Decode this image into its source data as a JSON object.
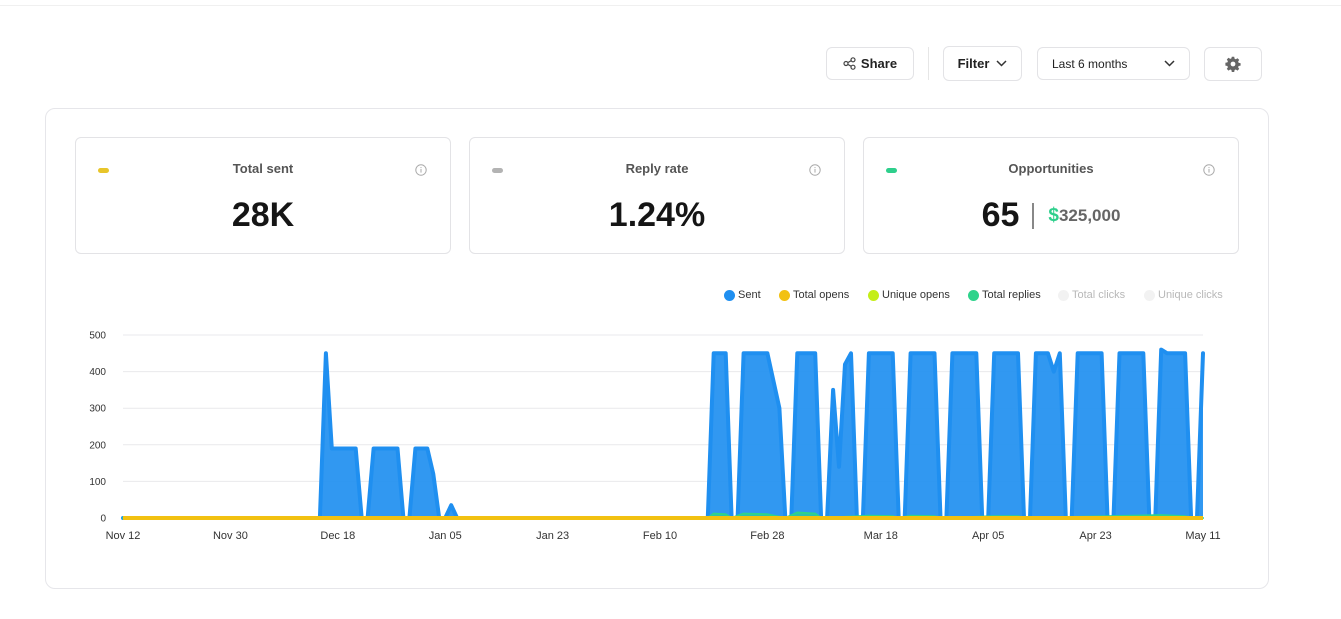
{
  "toolbar": {
    "share_label": "Share",
    "filter_label": "Filter",
    "range_label": "Last 6 months",
    "share_icon": "share-icon",
    "settings_icon": "gear-icon"
  },
  "cards": {
    "total_sent": {
      "title": "Total sent",
      "value": "28K",
      "dot_color": "#e8c52a"
    },
    "reply_rate": {
      "title": "Reply rate",
      "value": "1.24%",
      "dot_color": "#b3b3b3"
    },
    "opportunities": {
      "title": "Opportunities",
      "value": "65",
      "currency": "$",
      "amount": "325,000",
      "dot_color": "#2ecf8c"
    }
  },
  "legend": [
    {
      "name": "Sent",
      "color": "#1f8ff0",
      "active": true
    },
    {
      "name": "Total opens",
      "color": "#f2c111",
      "active": true
    },
    {
      "name": "Unique opens",
      "color": "#c4ee17",
      "active": true
    },
    {
      "name": "Total replies",
      "color": "#2ed38b",
      "active": true
    },
    {
      "name": "Total clicks",
      "color": "#f2f2f2",
      "active": false
    },
    {
      "name": "Unique clicks",
      "color": "#f2f2f2",
      "active": false
    }
  ],
  "chart_data": {
    "type": "area",
    "x_start": "Nov 12",
    "x_end": "May 11",
    "xticks": [
      "Nov 12",
      "Nov 30",
      "Dec 18",
      "Jan 05",
      "Jan 23",
      "Feb 10",
      "Feb 28",
      "Mar 18",
      "Apr 05",
      "Apr 23",
      "May 11"
    ],
    "yticks": [
      0,
      100,
      200,
      300,
      400,
      500
    ],
    "ylim": [
      0,
      500
    ],
    "grid": true,
    "legend_position": "top-right",
    "series": [
      {
        "name": "Sent",
        "color": "#1f8ff0",
        "points": [
          [
            "Nov 12",
            0
          ],
          [
            "Dec 15",
            0
          ],
          [
            "Dec 16",
            450
          ],
          [
            "Dec 17",
            190
          ],
          [
            "Dec 21",
            190
          ],
          [
            "Dec 22",
            0
          ],
          [
            "Dec 23",
            0
          ],
          [
            "Dec 24",
            190
          ],
          [
            "Dec 28",
            190
          ],
          [
            "Dec 29",
            0
          ],
          [
            "Dec 30",
            0
          ],
          [
            "Dec 31",
            190
          ],
          [
            "Jan 02",
            190
          ],
          [
            "Jan 03",
            120
          ],
          [
            "Jan 04",
            0
          ],
          [
            "Jan 05",
            0
          ],
          [
            "Jan 06",
            35
          ],
          [
            "Jan 07",
            0
          ],
          [
            "Feb 18",
            0
          ],
          [
            "Feb 19",
            450
          ],
          [
            "Feb 21",
            450
          ],
          [
            "Feb 22",
            0
          ],
          [
            "Feb 23",
            0
          ],
          [
            "Feb 24",
            450
          ],
          [
            "Feb 28",
            450
          ],
          [
            "Mar 01",
            300
          ],
          [
            "Mar 02",
            0
          ],
          [
            "Mar 03",
            0
          ],
          [
            "Mar 04",
            450
          ],
          [
            "Mar 07",
            450
          ],
          [
            "Mar 08",
            0
          ],
          [
            "Mar 09",
            0
          ],
          [
            "Mar 10",
            350
          ],
          [
            "Mar 11",
            140
          ],
          [
            "Mar 12",
            420
          ],
          [
            "Mar 13",
            450
          ],
          [
            "Mar 14",
            0
          ],
          [
            "Mar 15",
            0
          ],
          [
            "Mar 16",
            450
          ],
          [
            "Mar 20",
            450
          ],
          [
            "Mar 21",
            0
          ],
          [
            "Mar 22",
            0
          ],
          [
            "Mar 23",
            450
          ],
          [
            "Mar 27",
            450
          ],
          [
            "Mar 28",
            0
          ],
          [
            "Mar 29",
            0
          ],
          [
            "Mar 30",
            450
          ],
          [
            "Apr 03",
            450
          ],
          [
            "Apr 04",
            0
          ],
          [
            "Apr 05",
            0
          ],
          [
            "Apr 06",
            450
          ],
          [
            "Apr 10",
            450
          ],
          [
            "Apr 11",
            0
          ],
          [
            "Apr 12",
            0
          ],
          [
            "Apr 13",
            450
          ],
          [
            "Apr 15",
            450
          ],
          [
            "Apr 16",
            400
          ],
          [
            "Apr 17",
            450
          ],
          [
            "Apr 18",
            0
          ],
          [
            "Apr 19",
            0
          ],
          [
            "Apr 20",
            450
          ],
          [
            "Apr 24",
            450
          ],
          [
            "Apr 25",
            0
          ],
          [
            "Apr 26",
            0
          ],
          [
            "Apr 27",
            450
          ],
          [
            "May 01",
            450
          ],
          [
            "May 02",
            0
          ],
          [
            "May 03",
            0
          ],
          [
            "May 04",
            460
          ],
          [
            "May 05",
            450
          ],
          [
            "May 08",
            450
          ],
          [
            "May 09",
            0
          ],
          [
            "May 10",
            0
          ],
          [
            "May 11",
            450
          ]
        ]
      },
      {
        "name": "Total replies",
        "color": "#2ed38b",
        "points": [
          [
            "Nov 12",
            0
          ],
          [
            "Feb 18",
            0
          ],
          [
            "Feb 19",
            12
          ],
          [
            "Feb 21",
            10
          ],
          [
            "Feb 22",
            0
          ],
          [
            "Feb 24",
            12
          ],
          [
            "Feb 28",
            10
          ],
          [
            "Mar 02",
            0
          ],
          [
            "Mar 04",
            15
          ],
          [
            "Mar 07",
            12
          ],
          [
            "Mar 08",
            0
          ],
          [
            "Mar 16",
            6
          ],
          [
            "Mar 20",
            5
          ],
          [
            "Mar 21",
            0
          ],
          [
            "Mar 23",
            6
          ],
          [
            "Mar 27",
            5
          ],
          [
            "Mar 28",
            0
          ],
          [
            "Apr 06",
            5
          ],
          [
            "Apr 10",
            5
          ],
          [
            "Apr 11",
            0
          ],
          [
            "May 04",
            8
          ],
          [
            "May 08",
            5
          ],
          [
            "May 09",
            0
          ],
          [
            "May 11",
            0
          ]
        ]
      },
      {
        "name": "Total opens",
        "color": "#f2c111",
        "points": [
          [
            "Nov 12",
            0
          ],
          [
            "May 11",
            0
          ]
        ]
      }
    ]
  }
}
